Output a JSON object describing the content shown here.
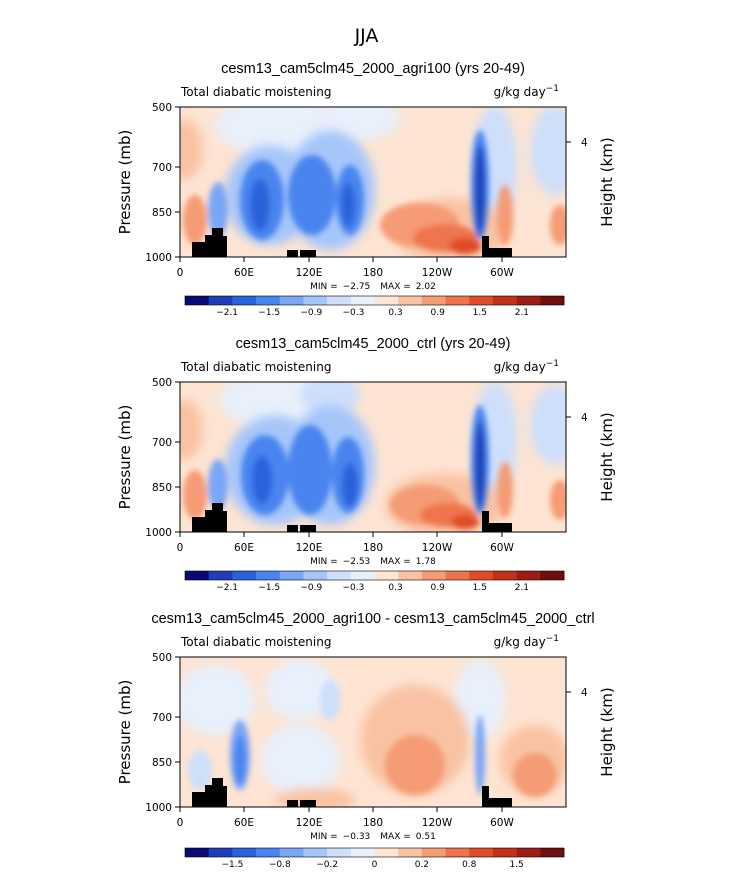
{
  "figure_title": "JJA",
  "chart_data": [
    {
      "type": "heatmap",
      "title": "cesm13_cam5clm45_2000_agri100 (yrs 20-49)",
      "variable": "Total diabatic moistening",
      "units": "g/kg day",
      "units_exp": "−1",
      "ylabel": "Pressure (mb)",
      "ylabel_right": "Height (km)",
      "yticks": [
        "500",
        "700",
        "850",
        "1000"
      ],
      "yticks_right": [
        "4"
      ],
      "xticks": [
        "0",
        "60E",
        "120E",
        "180",
        "120W",
        "60W"
      ],
      "ylim": [
        500,
        1000
      ],
      "xlim": [
        0,
        360
      ],
      "stats": {
        "min_label": "MIN =",
        "min": "−2.75",
        "max_label": "MAX =",
        "max": "2.02"
      },
      "colorbar": {
        "colors": [
          "#0a0a75",
          "#1e3fb8",
          "#2a62dc",
          "#4a84ef",
          "#7aa6f6",
          "#a6c6fa",
          "#cddffb",
          "#e8f0fb",
          "#fde4d3",
          "#f9c3a3",
          "#f59b75",
          "#ee744d",
          "#e04c28",
          "#c3301c",
          "#9c1d16",
          "#6e0f0d"
        ],
        "labels": [
          "−2.1",
          "−1.5",
          "−0.9",
          "−0.3",
          "0.3",
          "0.9",
          "1.5",
          "2.1"
        ]
      }
    },
    {
      "type": "heatmap",
      "title": "cesm13_cam5clm45_2000_ctrl (yrs 20-49)",
      "variable": "Total diabatic moistening",
      "units": "g/kg day",
      "units_exp": "−1",
      "ylabel": "Pressure (mb)",
      "ylabel_right": "Height (km)",
      "yticks": [
        "500",
        "700",
        "850",
        "1000"
      ],
      "yticks_right": [
        "4"
      ],
      "xticks": [
        "0",
        "60E",
        "120E",
        "180",
        "120W",
        "60W"
      ],
      "ylim": [
        500,
        1000
      ],
      "xlim": [
        0,
        360
      ],
      "stats": {
        "min_label": "MIN =",
        "min": "−2.53",
        "max_label": "MAX =",
        "max": "1.78"
      },
      "colorbar": {
        "colors": [
          "#0a0a75",
          "#1e3fb8",
          "#2a62dc",
          "#4a84ef",
          "#7aa6f6",
          "#a6c6fa",
          "#cddffb",
          "#e8f0fb",
          "#fde4d3",
          "#f9c3a3",
          "#f59b75",
          "#ee744d",
          "#e04c28",
          "#c3301c",
          "#9c1d16",
          "#6e0f0d"
        ],
        "labels": [
          "−2.1",
          "−1.5",
          "−0.9",
          "−0.3",
          "0.3",
          "0.9",
          "1.5",
          "2.1"
        ]
      }
    },
    {
      "type": "heatmap",
      "title": "cesm13_cam5clm45_2000_agri100 - cesm13_cam5clm45_2000_ctrl",
      "variable": "Total diabatic moistening",
      "units": "g/kg day",
      "units_exp": "−1",
      "ylabel": "Pressure (mb)",
      "ylabel_right": "Height (km)",
      "yticks": [
        "500",
        "700",
        "850",
        "1000"
      ],
      "yticks_right": [
        "4"
      ],
      "xticks": [
        "0",
        "60E",
        "120E",
        "180",
        "120W",
        "60W"
      ],
      "ylim": [
        500,
        1000
      ],
      "xlim": [
        0,
        360
      ],
      "stats": {
        "min_label": "MIN =",
        "min": "−0.33",
        "max_label": "MAX =",
        "max": "0.51"
      },
      "colorbar": {
        "colors": [
          "#0a0a75",
          "#1e3fb8",
          "#2a62dc",
          "#4a84ef",
          "#7aa6f6",
          "#a6c6fa",
          "#cddffb",
          "#e8f0fb",
          "#fde4d3",
          "#f9c3a3",
          "#f59b75",
          "#ee744d",
          "#e04c28",
          "#c3301c",
          "#9c1d16",
          "#6e0f0d"
        ],
        "labels": [
          "−1.5",
          "−0.8",
          "−0.2",
          "0",
          "0.2",
          "0.8",
          "1.5"
        ]
      }
    }
  ]
}
